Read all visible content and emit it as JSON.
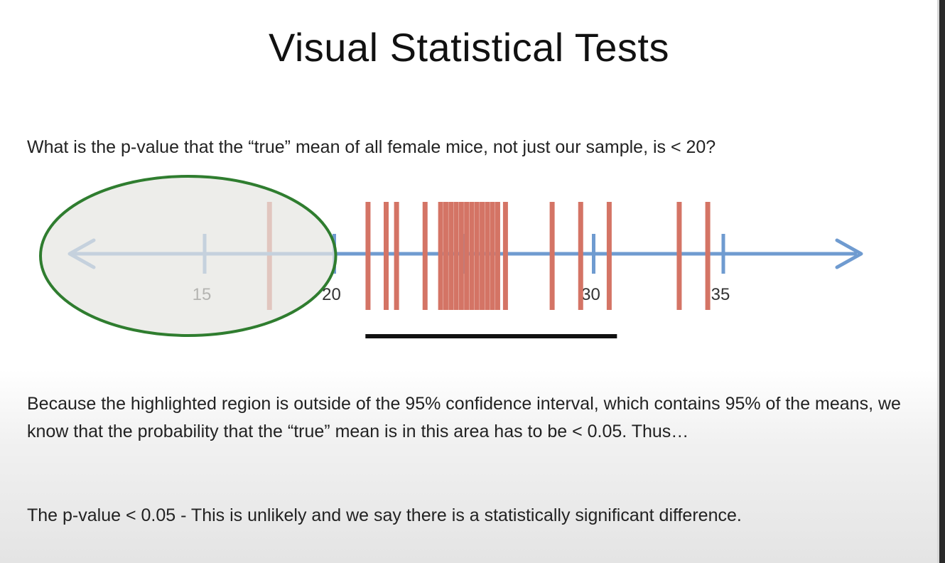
{
  "slide": {
    "title": "Visual Statistical Tests",
    "question": "What is the p-value that the “true” mean of all female mice, not just our sample, is < 20?",
    "paragraph1": "Because the highlighted region is outside of the 95% confidence interval, which contains 95% of the means, we know that the probability that the “true” mean is in this area has to be < 0.05.  Thus…",
    "paragraph2": "The p-value < 0.05 - This is unlikely and we say there is a statistically significant difference."
  },
  "number_line": {
    "tick_values": [
      15,
      20,
      25,
      30,
      35
    ],
    "tick_labels": [
      "15",
      "20",
      "",
      "30",
      "35"
    ],
    "sample_means": [
      17.5,
      21.3,
      22.0,
      22.4,
      23.5,
      24.1,
      24.3,
      24.5,
      24.7,
      24.9,
      25.1,
      25.3,
      25.5,
      25.7,
      25.9,
      26.1,
      26.3,
      26.6,
      28.4,
      29.5,
      30.6,
      33.3,
      34.4
    ],
    "confidence_interval": [
      21.2,
      30.9
    ],
    "highlighted_region_max": 20,
    "colors": {
      "axis": "#6f9bd0",
      "means": "#d47465",
      "interval": "#111111",
      "highlight_stroke": "#2f7d2f",
      "highlight_fill": "#e6e6e2"
    }
  }
}
